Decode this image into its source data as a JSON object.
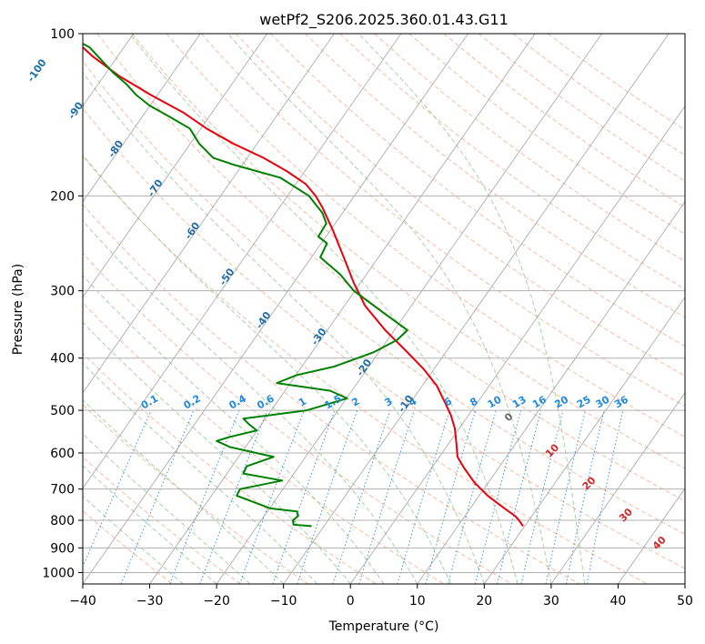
{
  "chart_data": {
    "type": "line",
    "chart_kind": "skew-T log-P",
    "title": "wetPf2_S206.2025.360.01.43.G11",
    "xlabel": "Temperature (°C)",
    "ylabel": "Pressure (hPa)",
    "xlim": [
      -40,
      50
    ],
    "ylim": [
      1050,
      100
    ],
    "y_scale": "log",
    "x_ticks": [
      -40,
      -30,
      -20,
      -10,
      0,
      10,
      20,
      30,
      40,
      50
    ],
    "y_ticks": [
      100,
      200,
      300,
      400,
      500,
      600,
      700,
      800,
      900,
      1000
    ],
    "grid": true,
    "colors": {
      "temperature": "#e8000b",
      "dewpoint": "#008000",
      "isotherm": "#999999",
      "dry_adiabat": "#f4a582",
      "moist_adiabat": "#8fc98f",
      "mixing_ratio": "#1e88e5",
      "isotherm_label": "#1f6fa8",
      "theta_label": "#d62728"
    },
    "series": [
      {
        "key": "temperature",
        "points": [
          [
            25.8,
            820
          ],
          [
            25.2,
            800
          ],
          [
            24.6,
            785
          ],
          [
            23.0,
            760
          ],
          [
            20.5,
            720
          ],
          [
            18.5,
            680
          ],
          [
            17.0,
            640
          ],
          [
            16.0,
            610
          ],
          [
            15.8,
            570
          ],
          [
            15.6,
            540
          ],
          [
            15.0,
            510
          ],
          [
            14.0,
            480
          ],
          [
            12.9,
            450
          ],
          [
            11.0,
            420
          ],
          [
            8.5,
            390
          ],
          [
            5.2,
            355
          ],
          [
            2.2,
            320
          ],
          [
            0.5,
            290
          ],
          [
            -1.0,
            260
          ],
          [
            -2.6,
            232
          ],
          [
            -4.2,
            210
          ],
          [
            -5.2,
            200
          ],
          [
            -6.7,
            190
          ],
          [
            -9.5,
            180
          ],
          [
            -13.0,
            170
          ],
          [
            -17.5,
            160
          ],
          [
            -21.5,
            150
          ],
          [
            -25.0,
            140
          ],
          [
            -29.8,
            130
          ],
          [
            -34.5,
            120
          ],
          [
            -38.6,
            110
          ],
          [
            -42.2,
            100
          ]
        ]
      },
      {
        "key": "dewpoint",
        "points": [
          [
            -5.8,
            820
          ],
          [
            -8.5,
            815
          ],
          [
            -8.6,
            800
          ],
          [
            -7.8,
            785
          ],
          [
            -8.0,
            770
          ],
          [
            -12.0,
            760
          ],
          [
            -17.0,
            720
          ],
          [
            -16.5,
            700
          ],
          [
            -10.2,
            675
          ],
          [
            -16.0,
            655
          ],
          [
            -15.5,
            635
          ],
          [
            -11.5,
            610
          ],
          [
            -18.0,
            585
          ],
          [
            -20.0,
            570
          ],
          [
            -18.0,
            560
          ],
          [
            -14.0,
            545
          ],
          [
            -15.2,
            530
          ],
          [
            -16.0,
            518
          ],
          [
            -6.5,
            500
          ],
          [
            -0.5,
            475
          ],
          [
            -3.0,
            460
          ],
          [
            -11.0,
            445
          ],
          [
            -8.0,
            430
          ],
          [
            -2.5,
            415
          ],
          [
            3.5,
            390
          ],
          [
            7.0,
            370
          ],
          [
            8.5,
            355
          ],
          [
            5.0,
            330
          ],
          [
            0.5,
            300
          ],
          [
            -1.5,
            280
          ],
          [
            -4.5,
            260
          ],
          [
            -3.5,
            245
          ],
          [
            -4.8,
            238
          ],
          [
            -3.6,
            225
          ],
          [
            -4.2,
            215
          ],
          [
            -6.2,
            200
          ],
          [
            -10.5,
            185
          ],
          [
            -17.5,
            175
          ],
          [
            -20.5,
            170
          ],
          [
            -22.6,
            160
          ],
          [
            -24.0,
            150
          ],
          [
            -27.3,
            142
          ],
          [
            -30.0,
            136
          ],
          [
            -32.0,
            130
          ],
          [
            -33.5,
            124
          ],
          [
            -35.5,
            118
          ],
          [
            -37.2,
            112
          ],
          [
            -39.0,
            106
          ],
          [
            -42.8,
            100
          ]
        ]
      }
    ],
    "isotherm_labels": [
      -100,
      -90,
      -80,
      -70,
      -60,
      -50,
      -40,
      -30,
      -20,
      -10
    ],
    "mixing_ratio_labels": [
      0.1,
      0.2,
      0.4,
      0.6,
      1,
      1.5,
      2,
      3,
      4,
      6,
      8,
      10,
      13,
      16,
      20,
      25,
      30,
      36
    ],
    "theta_labels": [
      0,
      10,
      20,
      30,
      40
    ]
  }
}
